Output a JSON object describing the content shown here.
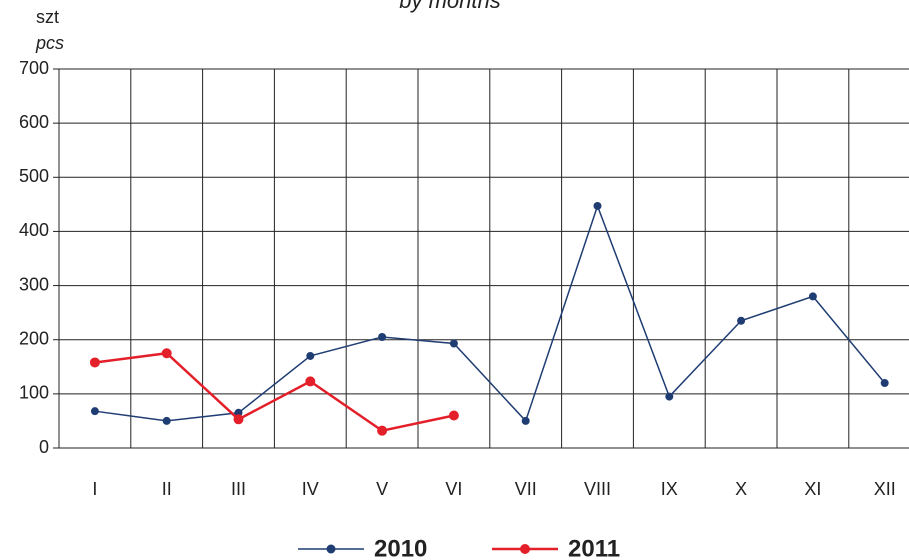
{
  "chart_data": {
    "type": "line",
    "title": "by months",
    "y_label": "szt",
    "y_label_en": "pcs",
    "categories": [
      "I",
      "II",
      "III",
      "IV",
      "V",
      "VI",
      "VII",
      "VIII",
      "IX",
      "X",
      "XI",
      "XII"
    ],
    "series": [
      {
        "name": "2010",
        "color": "#1f3d73",
        "values": [
          68,
          50,
          65,
          170,
          205,
          193,
          50,
          447,
          95,
          235,
          280,
          120
        ]
      },
      {
        "name": "2011",
        "color": "#e3202a",
        "values": [
          158,
          175,
          53,
          123,
          32,
          60,
          null,
          null,
          null,
          null,
          null,
          null
        ]
      }
    ],
    "ylim": [
      0,
      700
    ],
    "yticks": [
      0,
      100,
      200,
      300,
      400,
      500,
      600,
      700
    ],
    "grid": true,
    "legend": "bottom"
  }
}
